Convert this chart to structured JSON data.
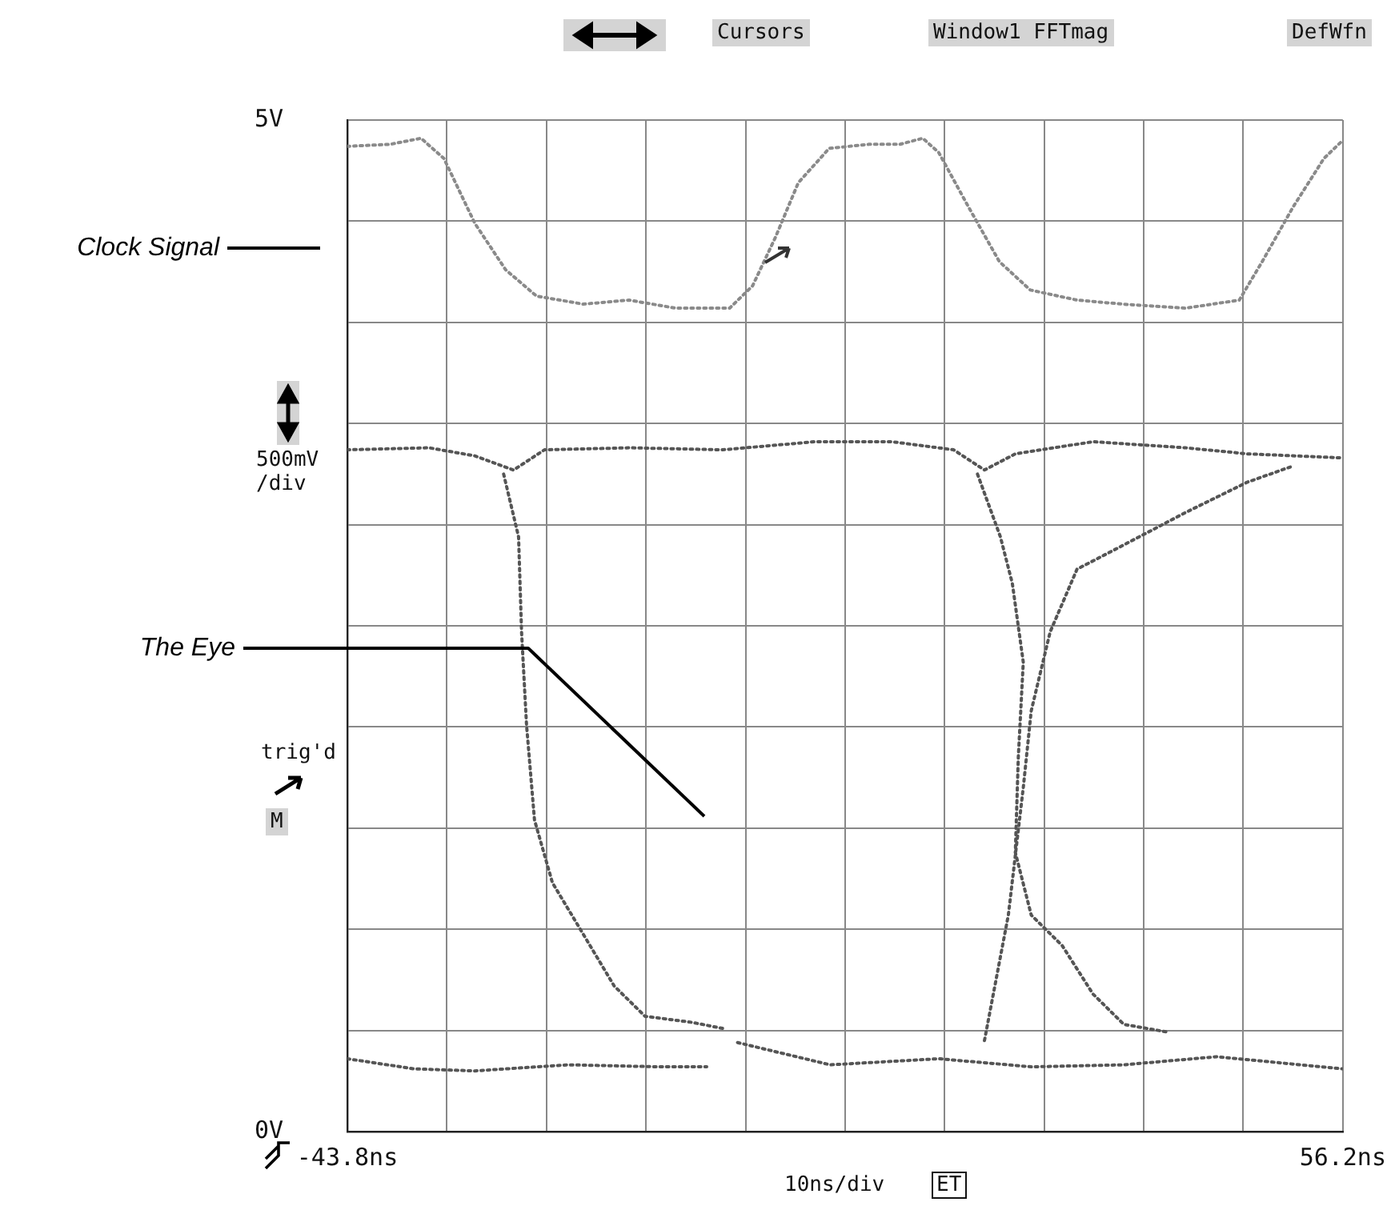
{
  "chart_data": {
    "type": "line",
    "xlim": [
      -43.8,
      56.2
    ],
    "ylim": [
      0,
      5
    ],
    "xticks": [
      {
        "value": -43.8,
        "label": "-43.8ns"
      },
      {
        "value": -33.8,
        "label": null
      },
      {
        "value": -23.8,
        "label": null
      },
      {
        "value": -13.8,
        "label": null
      },
      {
        "value": -3.8,
        "label": null
      },
      {
        "value": 6.2,
        "label": null
      },
      {
        "value": 16.2,
        "label": null
      },
      {
        "value": 26.2,
        "label": null
      },
      {
        "value": 36.2,
        "label": null
      },
      {
        "value": 46.2,
        "label": null
      },
      {
        "value": 56.2,
        "label": "56.2ns"
      }
    ],
    "yticks": [
      {
        "value": 0,
        "label": "0V"
      },
      {
        "value": 0.5,
        "label": null
      },
      {
        "value": 1,
        "label": null
      },
      {
        "value": 1.5,
        "label": null
      },
      {
        "value": 2,
        "label": null
      },
      {
        "value": 2.5,
        "label": null
      },
      {
        "value": 3,
        "label": null
      },
      {
        "value": 3.5,
        "label": null
      },
      {
        "value": 4,
        "label": null
      },
      {
        "value": 4.5,
        "label": null
      },
      {
        "value": 5,
        "label": "5V"
      }
    ],
    "grid": true,
    "legend": false,
    "marker": "none",
    "line_style": "dotted",
    "series": [
      {
        "color": "#8a8a8a",
        "x": [
          -43.8,
          -39.5,
          -36.4,
          -34.1,
          -31.0,
          -27.9,
          -24.8,
          -20.1,
          -15.5,
          -10.8,
          -5.4,
          -3.1,
          -0.8,
          1.5,
          4.6,
          8.6,
          11.7,
          14.0,
          15.6,
          18.6,
          21.7,
          24.8,
          29.5,
          34.1,
          40.4,
          45.8,
          48.1,
          51.2,
          54.3,
          56.2
        ],
        "values": [
          4.87,
          4.88,
          4.91,
          4.81,
          4.49,
          4.26,
          4.13,
          4.09,
          4.11,
          4.07,
          4.07,
          4.18,
          4.42,
          4.69,
          4.86,
          4.88,
          4.88,
          4.91,
          4.84,
          4.57,
          4.3,
          4.16,
          4.11,
          4.09,
          4.07,
          4.11,
          4.3,
          4.57,
          4.81,
          4.9
        ]
      },
      {
        "color": "#555555",
        "x": [
          -43.8,
          -35.6,
          -31.0,
          -27.1,
          -24.0,
          -15.4,
          -6.1,
          3.2,
          10.9,
          17.1,
          20.2,
          23.3,
          31.1,
          40.4,
          46.6,
          56.2
        ],
        "values": [
          3.37,
          3.38,
          3.34,
          3.27,
          3.37,
          3.38,
          3.37,
          3.41,
          3.41,
          3.37,
          3.27,
          3.35,
          3.41,
          3.38,
          3.35,
          3.33
        ]
      },
      {
        "color": "#555555",
        "x": [
          -28.1,
          -26.6,
          -26.3,
          -25.8,
          -25.0,
          -23.2,
          -20.4,
          -17.0,
          -13.9,
          -9.2,
          -6.1
        ],
        "values": [
          3.25,
          2.94,
          2.47,
          2.01,
          1.54,
          1.23,
          1.0,
          0.72,
          0.57,
          0.54,
          0.51
        ]
      },
      {
        "color": "#555555",
        "x": [
          19.5,
          21.8,
          23.0,
          24.1,
          23.6,
          23.3,
          24.9,
          28.0,
          31.1,
          34.2,
          38.8
        ],
        "values": [
          3.25,
          2.94,
          2.71,
          2.32,
          1.85,
          1.38,
          1.07,
          0.92,
          0.68,
          0.53,
          0.49
        ]
      },
      {
        "color": "#555555",
        "x": [
          20.2,
          21.4,
          22.6,
          24.1,
          24.9,
          26.8,
          29.5,
          34.2,
          40.4,
          46.6,
          51.2
        ],
        "values": [
          0.45,
          0.76,
          1.07,
          1.7,
          2.08,
          2.47,
          2.78,
          2.9,
          3.06,
          3.21,
          3.29
        ]
      },
      {
        "color": "#555555",
        "x": [
          -43.8,
          -37.1,
          -31.0,
          -21.6,
          -12.3,
          -7.7,
          null,
          -4.6,
          4.7,
          15.6,
          24.9,
          34.2,
          43.5,
          56.2
        ],
        "values": [
          0.36,
          0.31,
          0.3,
          0.33,
          0.32,
          0.32,
          null,
          0.44,
          0.33,
          0.36,
          0.32,
          0.33,
          0.37,
          0.31
        ]
      }
    ],
    "annotations": [
      "Clock Signal",
      "The Eye",
      "Cursors",
      "Window1 FFTmag",
      "DefWfn",
      "500mV\n/div",
      "trig'd",
      "M",
      "10ns/div",
      "ET"
    ]
  }
}
